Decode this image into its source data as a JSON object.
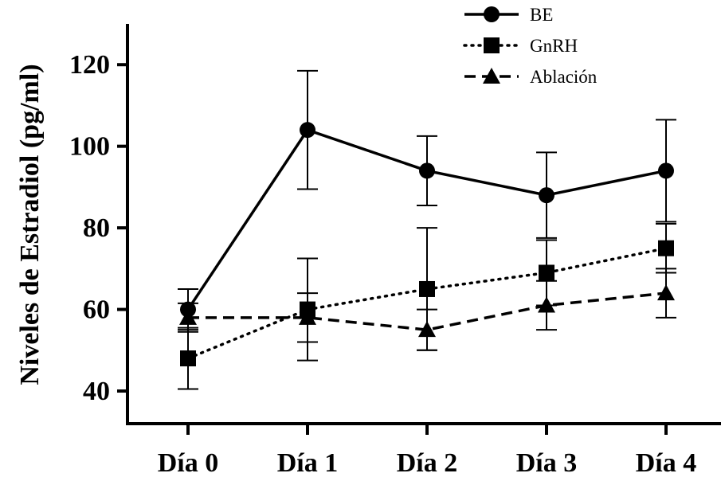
{
  "chart_data": {
    "type": "line",
    "ylabel": "Niveles de Estradiol (pg/ml)",
    "categories": [
      "Día 0",
      "Día 1",
      "Día 2",
      "Día 3",
      "Día 4"
    ],
    "ylim": [
      32,
      130
    ],
    "yticks": [
      40,
      60,
      80,
      100,
      120
    ],
    "grid": false,
    "legend_position": "top-right",
    "series": [
      {
        "name": "BE",
        "marker": "circle",
        "line_style": "solid",
        "color": "#000000",
        "values": [
          60,
          104,
          94,
          88,
          94
        ],
        "errors": [
          5,
          14.5,
          8.5,
          10.5,
          12.5
        ]
      },
      {
        "name": "GnRH",
        "marker": "square",
        "line_style": "dotted",
        "color": "#000000",
        "values": [
          48,
          60,
          65,
          69,
          75
        ],
        "errors": [
          7.5,
          12.5,
          15,
          8,
          6
        ]
      },
      {
        "name": "Ablación",
        "marker": "triangle",
        "line_style": "dashed",
        "color": "#000000",
        "values": [
          58,
          58,
          55,
          61,
          64
        ],
        "errors": [
          3.5,
          6,
          5,
          6,
          6
        ]
      }
    ]
  }
}
